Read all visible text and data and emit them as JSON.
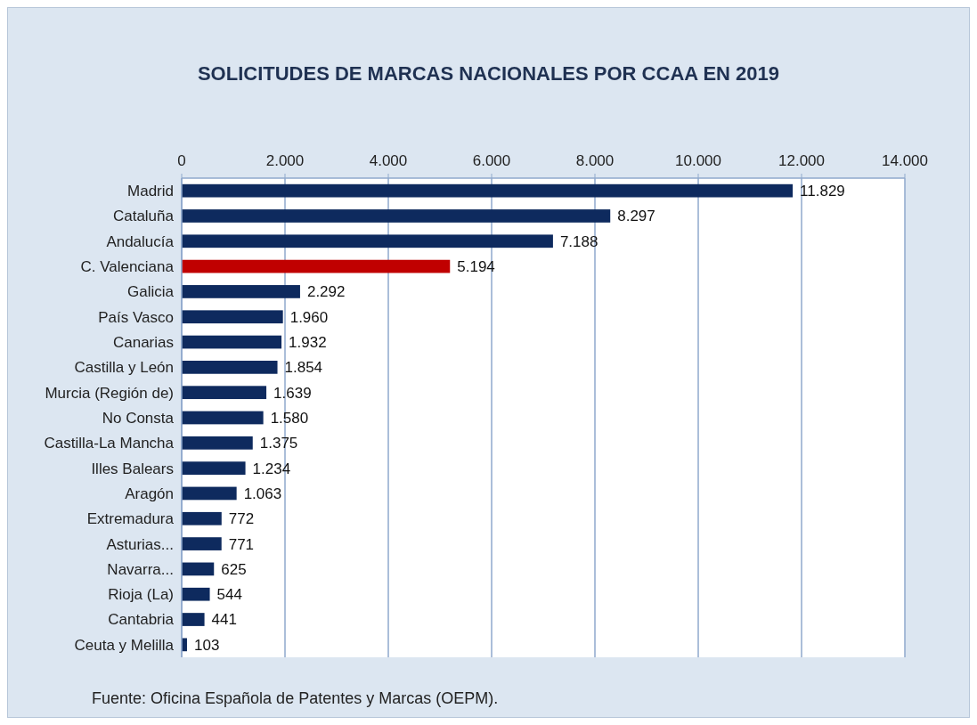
{
  "chart_data": {
    "type": "bar",
    "orientation": "horizontal",
    "title": "SOLICITUDES DE MARCAS NACIONALES POR CCAA EN 2019",
    "categories": [
      "Madrid",
      "Cataluña",
      "Andalucía",
      "C. Valenciana",
      "Galicia",
      "País Vasco",
      "Canarias",
      "Castilla y León",
      "Murcia (Región de)",
      "No Consta",
      "Castilla-La Mancha",
      "Illes Balears",
      "Aragón",
      "Extremadura",
      "Asturias...",
      "Navarra...",
      "Rioja (La)",
      "Cantabria",
      "Ceuta y Melilla"
    ],
    "values": [
      11829,
      8297,
      7188,
      5194,
      2292,
      1960,
      1932,
      1854,
      1639,
      1580,
      1375,
      1234,
      1063,
      772,
      771,
      625,
      544,
      441,
      103
    ],
    "value_labels": [
      "11.829",
      "8.297",
      "7.188",
      "5.194",
      "2.292",
      "1.960",
      "1.932",
      "1.854",
      "1.639",
      "1.580",
      "1.375",
      "1.234",
      "1.063",
      "772",
      "771",
      "625",
      "544",
      "441",
      "103"
    ],
    "colors": [
      "#0e2a5e",
      "#0e2a5e",
      "#0e2a5e",
      "#c00000",
      "#0e2a5e",
      "#0e2a5e",
      "#0e2a5e",
      "#0e2a5e",
      "#0e2a5e",
      "#0e2a5e",
      "#0e2a5e",
      "#0e2a5e",
      "#0e2a5e",
      "#0e2a5e",
      "#0e2a5e",
      "#0e2a5e",
      "#0e2a5e",
      "#0e2a5e",
      "#0e2a5e"
    ],
    "xlim": [
      0,
      14000
    ],
    "xticks": [
      0,
      {
        "value": 2000,
        "label": "2.000"
      },
      {
        "value": 4000,
        "label": "4.000"
      },
      {
        "value": 6000,
        "label": "6.000"
      },
      {
        "value": 8000,
        "label": "8.000"
      },
      {
        "value": 10000,
        "label": "10.000"
      },
      {
        "value": 12000,
        "label": "12.000"
      },
      {
        "value": 14000,
        "label": "14.000"
      }
    ],
    "grid": "x",
    "annotations": [
      "Fuente: Oficina Española de Patentes y Marcas (OEPM)."
    ]
  }
}
